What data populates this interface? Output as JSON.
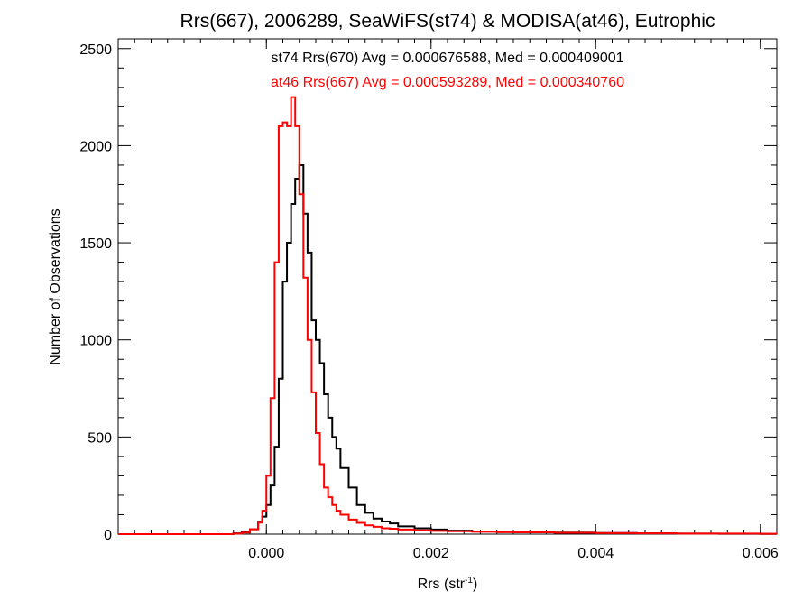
{
  "chart_data": {
    "type": "line",
    "title": "Rrs(667), 2006289, SeaWiFS(st74) & MODISA(at46), Eutrophic",
    "xlabel_base": "Rrs (str",
    "xlabel_sup": "-1",
    "xlabel_tail": ")",
    "ylabel": "Number of Observations",
    "xlim": [
      -0.0018,
      0.0062
    ],
    "ylim": [
      0,
      2550
    ],
    "xticks": [
      {
        "value": 0.0,
        "label": "0.000"
      },
      {
        "value": 0.002,
        "label": "0.002"
      },
      {
        "value": 0.004,
        "label": "0.004"
      },
      {
        "value": 0.006,
        "label": "0.006"
      }
    ],
    "yticks": [
      {
        "value": 0,
        "label": "0"
      },
      {
        "value": 500,
        "label": "500"
      },
      {
        "value": 1000,
        "label": "1000"
      },
      {
        "value": 1500,
        "label": "1500"
      },
      {
        "value": 2000,
        "label": "2000"
      },
      {
        "value": 2500,
        "label": "2500"
      }
    ],
    "annotations": [
      {
        "text": "st74 Rrs(670) Avg = 0.000676588, Med = 0.000409001",
        "color": "#000000"
      },
      {
        "text": "at46 Rrs(667) Avg = 0.000593289, Med = 0.000340760",
        "color": "#ff0000"
      }
    ],
    "series": [
      {
        "name": "st74",
        "color": "#000000",
        "points": [
          [
            -0.0018,
            0
          ],
          [
            -0.0006,
            0
          ],
          [
            -0.0004,
            4
          ],
          [
            -0.0003,
            12
          ],
          [
            -0.0002,
            25
          ],
          [
            -0.0001,
            60
          ],
          [
            -5e-05,
            90
          ],
          [
            0.0,
            150
          ],
          [
            5e-05,
            250
          ],
          [
            0.0001,
            450
          ],
          [
            0.00015,
            800
          ],
          [
            0.0002,
            1300
          ],
          [
            0.00025,
            1500
          ],
          [
            0.0003,
            1700
          ],
          [
            0.00035,
            1830
          ],
          [
            0.0004,
            1900
          ],
          [
            0.00045,
            1650
          ],
          [
            0.0005,
            1450
          ],
          [
            0.00055,
            1100
          ],
          [
            0.0006,
            1000
          ],
          [
            0.00065,
            880
          ],
          [
            0.0007,
            720
          ],
          [
            0.00075,
            600
          ],
          [
            0.0008,
            500
          ],
          [
            0.00085,
            440
          ],
          [
            0.0009,
            340
          ],
          [
            0.001,
            240
          ],
          [
            0.0011,
            150
          ],
          [
            0.0012,
            110
          ],
          [
            0.0013,
            80
          ],
          [
            0.0014,
            65
          ],
          [
            0.0015,
            55
          ],
          [
            0.0016,
            40
          ],
          [
            0.0018,
            30
          ],
          [
            0.002,
            24
          ],
          [
            0.0022,
            18
          ],
          [
            0.0025,
            14
          ],
          [
            0.0028,
            12
          ],
          [
            0.003,
            10
          ],
          [
            0.0035,
            8
          ],
          [
            0.004,
            6
          ],
          [
            0.0045,
            4
          ],
          [
            0.005,
            3
          ],
          [
            0.0055,
            2
          ],
          [
            0.006,
            1
          ],
          [
            0.0062,
            1
          ]
        ]
      },
      {
        "name": "at46",
        "color": "#ff0000",
        "points": [
          [
            -0.0018,
            0
          ],
          [
            -0.0006,
            0
          ],
          [
            -0.0004,
            3
          ],
          [
            -0.0003,
            8
          ],
          [
            -0.0002,
            25
          ],
          [
            -0.0001,
            60
          ],
          [
            -5e-05,
            120
          ],
          [
            0.0,
            300
          ],
          [
            5e-05,
            700
          ],
          [
            0.0001,
            1400
          ],
          [
            0.00015,
            2100
          ],
          [
            0.0002,
            2120
          ],
          [
            0.00025,
            2100
          ],
          [
            0.0003,
            2250
          ],
          [
            0.00035,
            2100
          ],
          [
            0.0004,
            1750
          ],
          [
            0.00045,
            1320
          ],
          [
            0.0005,
            1000
          ],
          [
            0.00055,
            730
          ],
          [
            0.0006,
            520
          ],
          [
            0.00065,
            360
          ],
          [
            0.0007,
            240
          ],
          [
            0.00075,
            190
          ],
          [
            0.0008,
            150
          ],
          [
            0.00085,
            120
          ],
          [
            0.0009,
            100
          ],
          [
            0.001,
            75
          ],
          [
            0.0011,
            58
          ],
          [
            0.0012,
            45
          ],
          [
            0.0013,
            38
          ],
          [
            0.0014,
            30
          ],
          [
            0.0015,
            28
          ],
          [
            0.0016,
            24
          ],
          [
            0.0018,
            20
          ],
          [
            0.002,
            17
          ],
          [
            0.0022,
            15
          ],
          [
            0.0025,
            12
          ],
          [
            0.0028,
            10
          ],
          [
            0.003,
            9
          ],
          [
            0.0035,
            7
          ],
          [
            0.004,
            5
          ],
          [
            0.0045,
            4
          ],
          [
            0.005,
            3
          ],
          [
            0.0055,
            3
          ],
          [
            0.006,
            2
          ],
          [
            0.0062,
            2
          ]
        ]
      }
    ]
  }
}
